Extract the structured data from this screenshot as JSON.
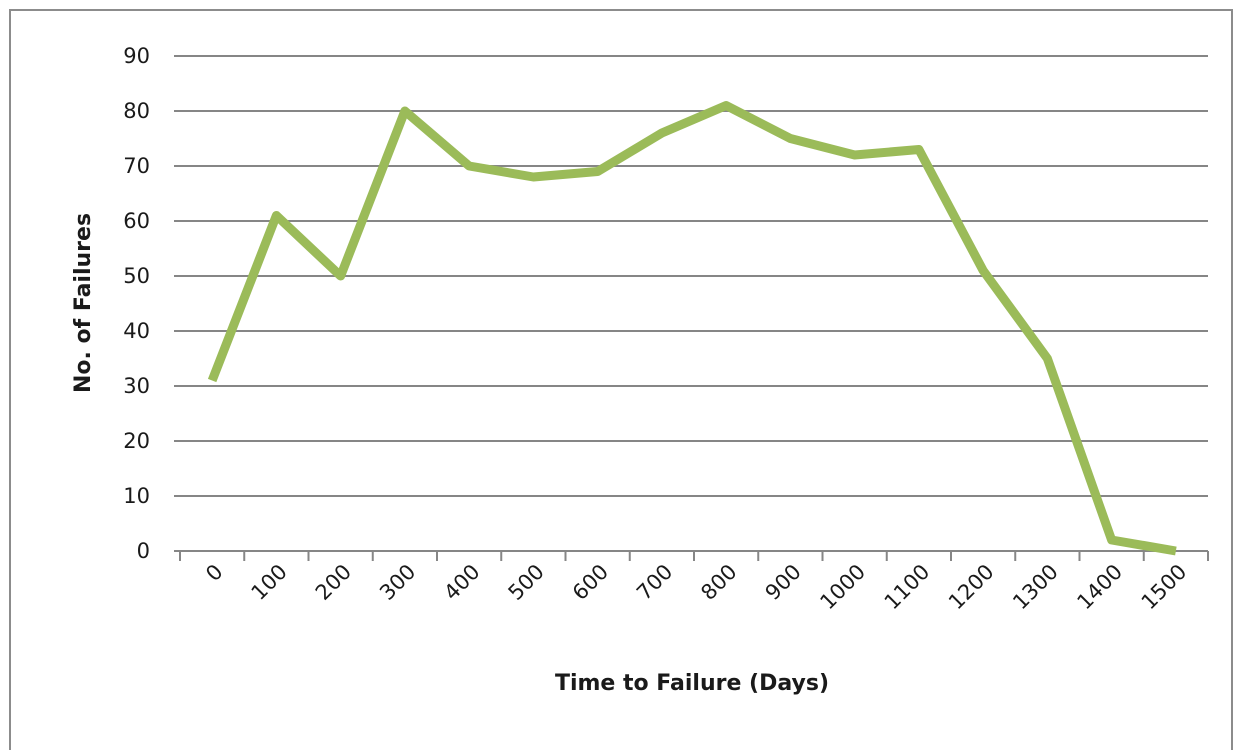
{
  "chart_data": {
    "type": "line",
    "x_label": "Time to Failure (Days)",
    "y_label": "No. of Failures",
    "categories": [
      "0",
      "100",
      "200",
      "300",
      "400",
      "500",
      "600",
      "700",
      "800",
      "900",
      "1000",
      "1100",
      "1200",
      "1300",
      "1400",
      "1500"
    ],
    "series": [
      {
        "color": "#9bbb59",
        "values": [
          31,
          61,
          50,
          80,
          70,
          68,
          69,
          76,
          81,
          75,
          72,
          73,
          51,
          35,
          2,
          0
        ]
      }
    ],
    "ylim": [
      0,
      90
    ],
    "yticks": [
      0,
      10,
      20,
      30,
      40,
      50,
      60,
      70,
      80,
      90
    ],
    "grid": true
  }
}
